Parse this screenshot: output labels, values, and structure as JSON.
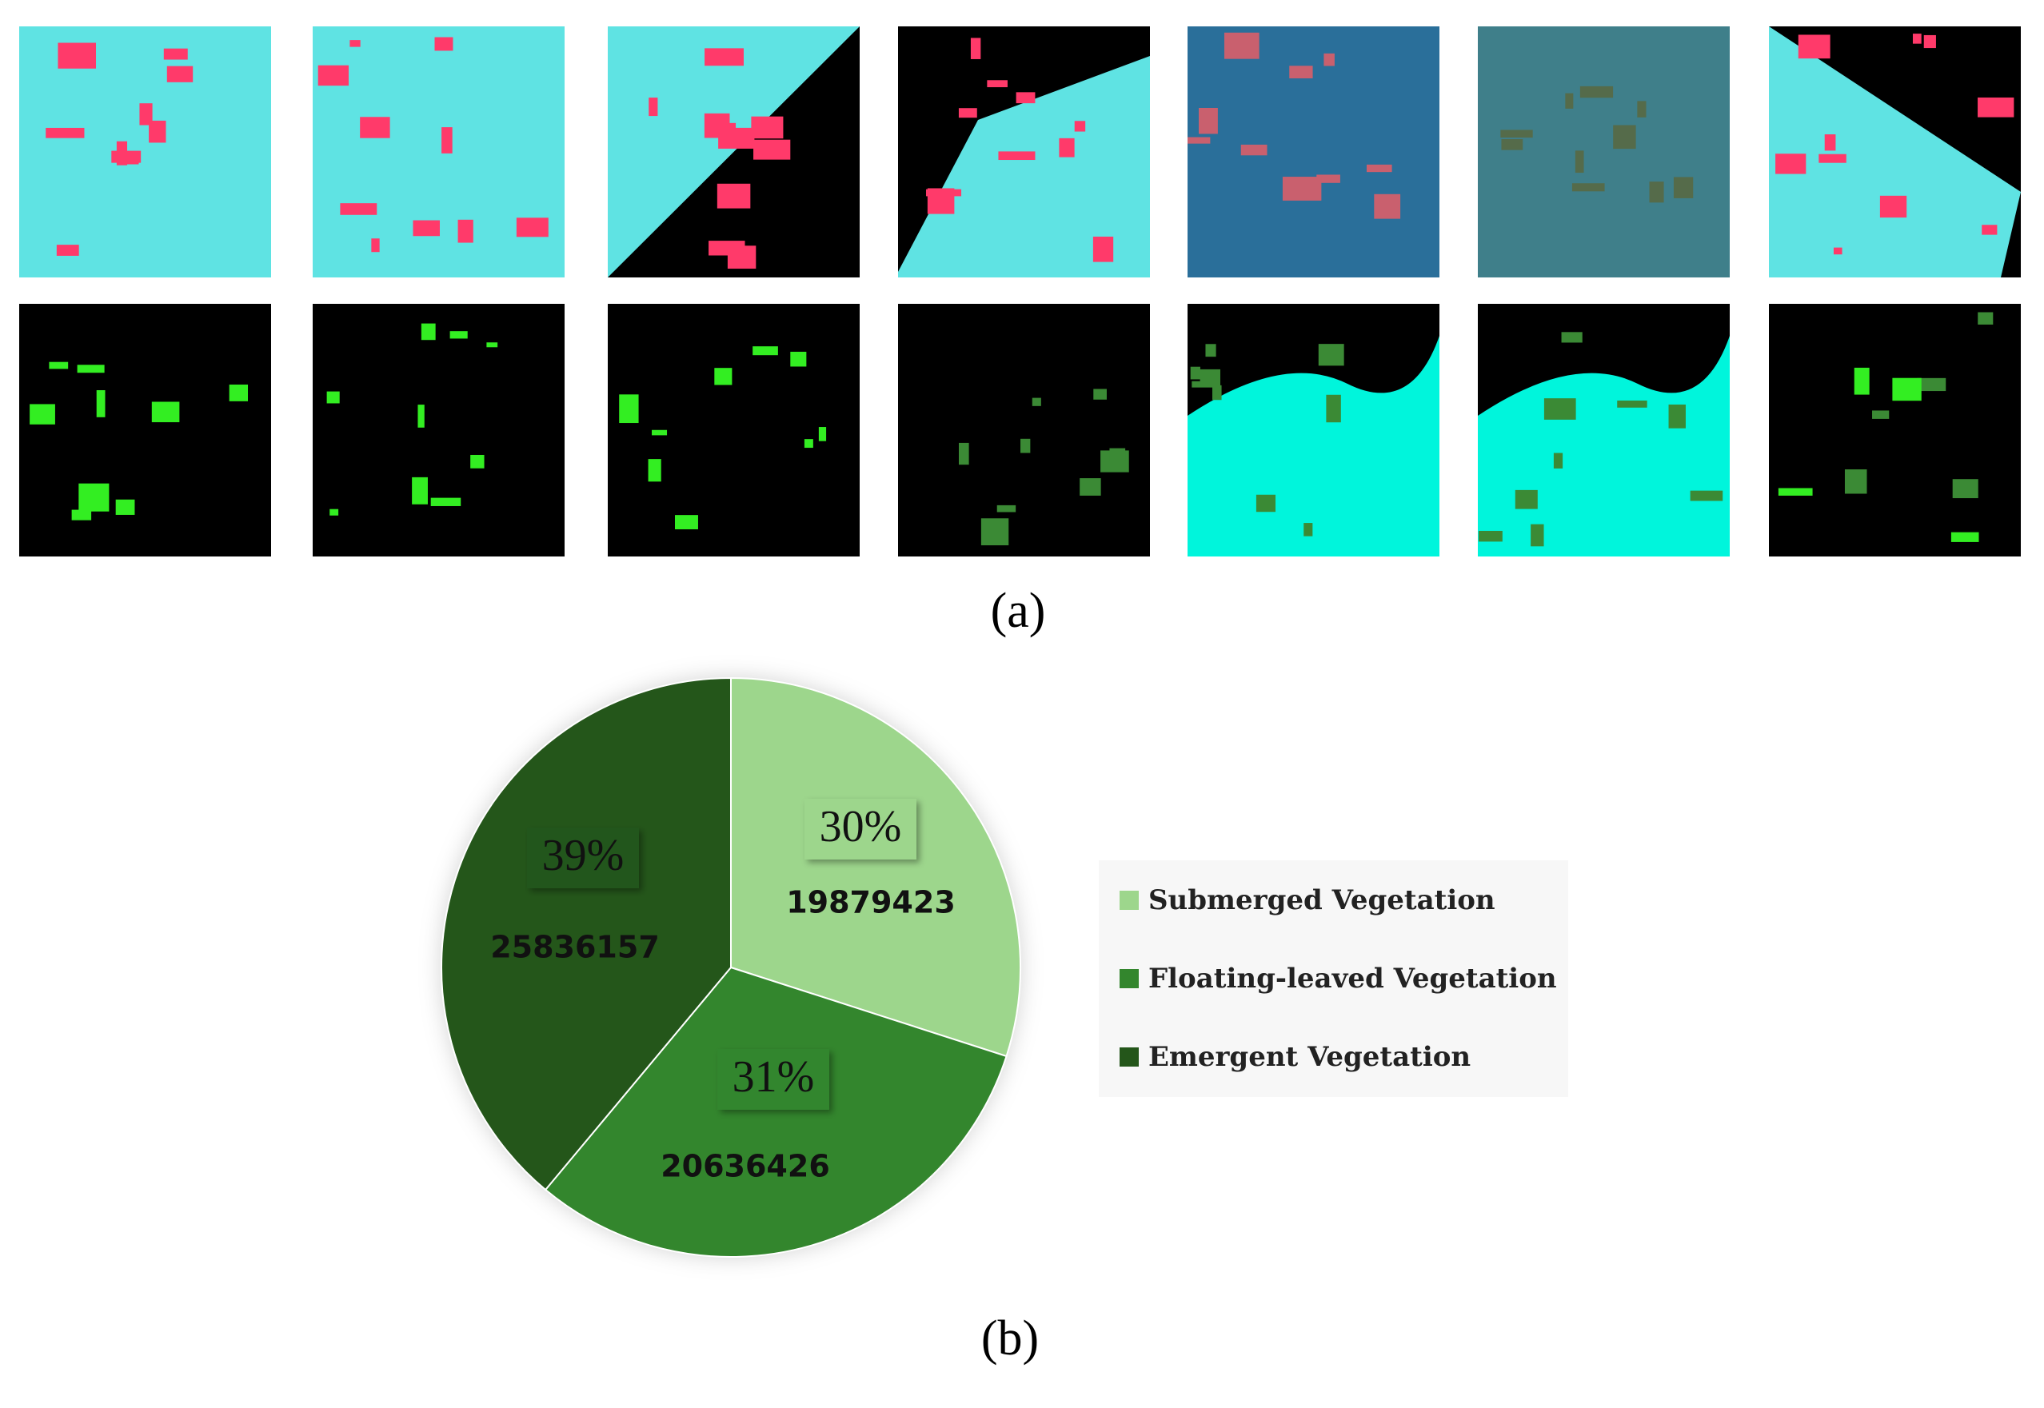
{
  "panels": {
    "a": "(a)",
    "b": "(b)"
  },
  "chart_data": {
    "type": "pie",
    "categories": [
      "Submerged Vegetation",
      "Floating-leaved Vegetation",
      "Emergent Vegetation"
    ],
    "values": [
      19879423,
      20636426,
      25836157
    ],
    "percentages": [
      30,
      31,
      39
    ],
    "percentage_labels": [
      "30%",
      "31%",
      "39%"
    ],
    "colors": [
      "#9dd68c",
      "#33862d",
      "#24561a"
    ],
    "legend": "right"
  }
}
